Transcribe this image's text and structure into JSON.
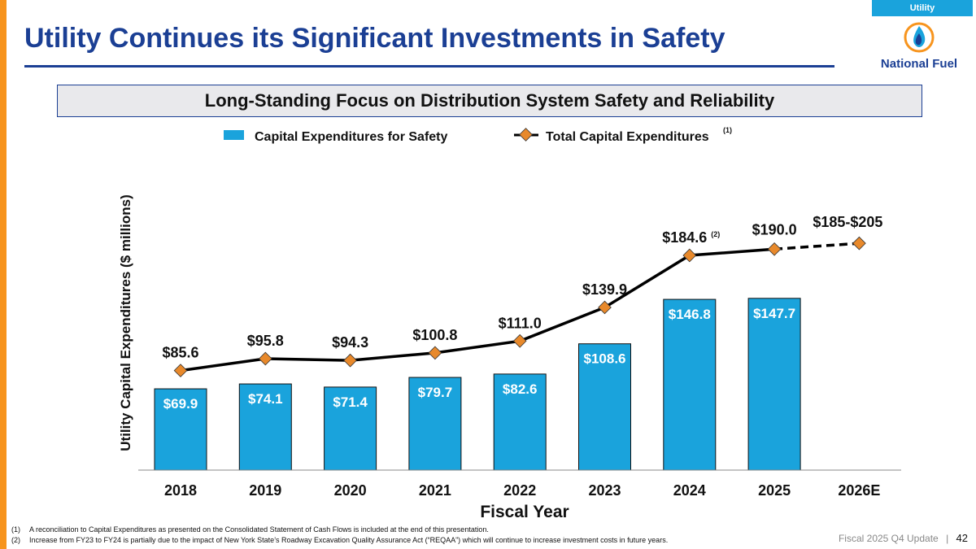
{
  "tag": "Utility",
  "title": "Utility Continues its Significant Investments in Safety",
  "logo_text": "National Fuel",
  "banner": "Long-Standing Focus on Distribution System Safety and Reliability",
  "colors": {
    "accent_orange": "#f7941d",
    "brand_blue": "#1b3f94",
    "bar": "#1aa3dc",
    "marker": "#e8892b"
  },
  "chart_data": {
    "type": "bar",
    "categories": [
      "2018",
      "2019",
      "2020",
      "2021",
      "2022",
      "2023",
      "2024",
      "2025",
      "2026E"
    ],
    "series": [
      {
        "name": "Capital Expenditures for Safety",
        "kind": "bar",
        "values": [
          69.9,
          74.1,
          71.4,
          79.7,
          82.6,
          108.6,
          146.8,
          147.7,
          null
        ],
        "labels": [
          "$69.9",
          "$74.1",
          "$71.4",
          "$79.7",
          "$82.6",
          "$108.6",
          "$146.8",
          "$147.7",
          ""
        ]
      },
      {
        "name": "Total Capital Expenditures",
        "superscript": "(1)",
        "kind": "line",
        "values": [
          85.6,
          95.8,
          94.3,
          100.8,
          111.0,
          139.9,
          184.6,
          190.0,
          195.0
        ],
        "labels": [
          "$85.6",
          "$95.8",
          "$94.3",
          "$100.8",
          "$111.0",
          "$139.9",
          "$184.6",
          "$190.0",
          "$185-$205"
        ],
        "label_notes": [
          "",
          "",
          "",
          "",
          "",
          "",
          "(2)",
          "",
          ""
        ],
        "projected_from_index": 7
      }
    ],
    "xlabel": "Fiscal Year",
    "ylabel": "Utility Capital Expenditures ($ millions)",
    "ylim": [
      0,
      210
    ]
  },
  "footnotes": [
    {
      "num": "(1)",
      "text": "A reconciliation to Capital Expenditures as presented on the Consolidated Statement of Cash Flows is included at the end of this presentation."
    },
    {
      "num": "(2)",
      "text": "Increase from FY23 to FY24 is partially due to the impact of New York State’s Roadway Excavation Quality Assurance Act (“REQAA”) which will continue to increase investment costs in future years."
    }
  ],
  "footer": {
    "text": "Fiscal 2025 Q4 Update",
    "separator": "|",
    "page": "42"
  }
}
